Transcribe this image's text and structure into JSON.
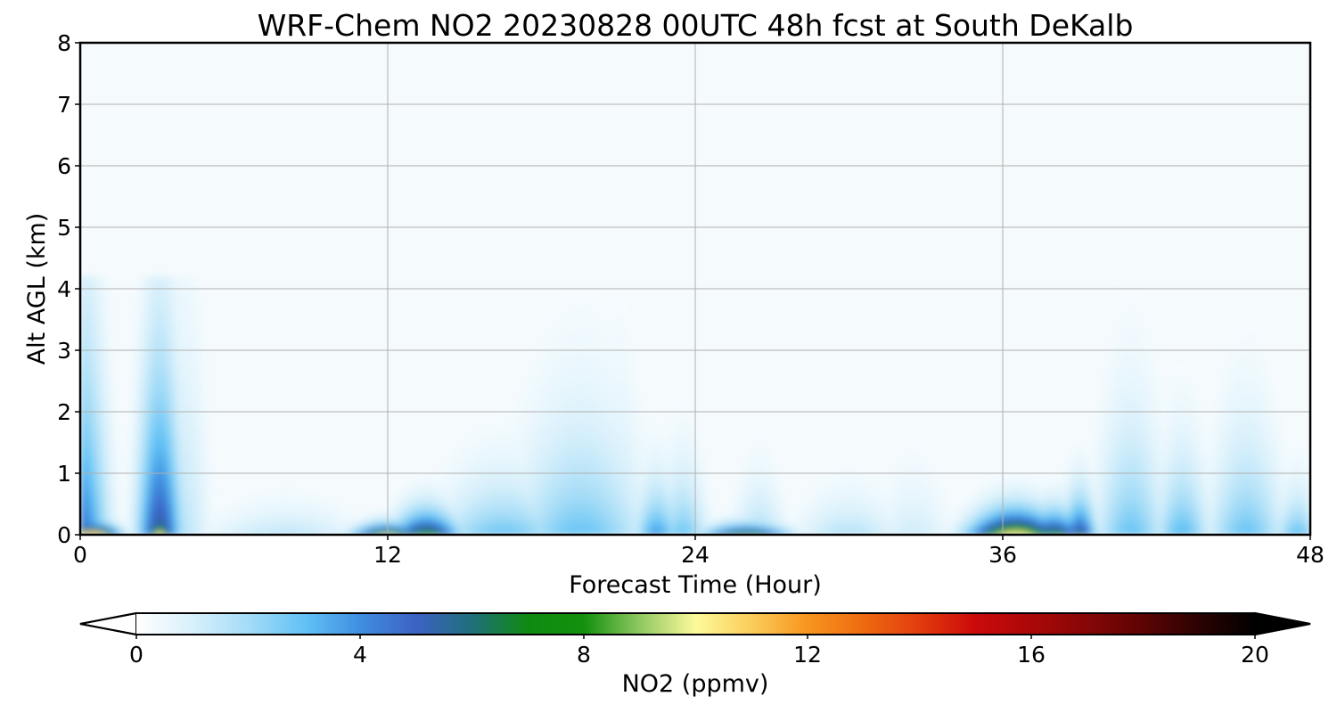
{
  "chart_data": {
    "type": "heatmap",
    "title": "WRF-Chem NO2  20230828 00UTC 48h fcst at South DeKalb",
    "xlabel": "Forecast Time (Hour)",
    "ylabel": "Alt AGL (km)",
    "xlim": [
      0,
      48
    ],
    "ylim": [
      0,
      8
    ],
    "xticks": [
      0,
      12,
      24,
      36,
      48
    ],
    "yticks": [
      0,
      1,
      2,
      3,
      4,
      5,
      6,
      7,
      8
    ],
    "grid": true,
    "background_color": "#f5fafd",
    "colorbar": {
      "label": "NO2  (ppmv)",
      "orientation": "horizontal",
      "placement": "bottom",
      "extend": "both",
      "range": [
        0,
        20
      ],
      "ticks": [
        0,
        4,
        8,
        12,
        16,
        20
      ],
      "stops": [
        {
          "v": 0,
          "c": "#ffffff"
        },
        {
          "v": 1,
          "c": "#d8f0fb"
        },
        {
          "v": 2,
          "c": "#a4dcf7"
        },
        {
          "v": 3,
          "c": "#62c2f5"
        },
        {
          "v": 4,
          "c": "#3f8ee0"
        },
        {
          "v": 5,
          "c": "#3c62c4"
        },
        {
          "v": 6,
          "c": "#1f6f7a"
        },
        {
          "v": 7,
          "c": "#0f8a10"
        },
        {
          "v": 8,
          "c": "#14900e"
        },
        {
          "v": 9,
          "c": "#8fc862"
        },
        {
          "v": 10,
          "c": "#fdfa9a"
        },
        {
          "v": 11,
          "c": "#fbcc5a"
        },
        {
          "v": 12,
          "c": "#f7961e"
        },
        {
          "v": 13,
          "c": "#ee6a10"
        },
        {
          "v": 14,
          "c": "#e23c0e"
        },
        {
          "v": 15,
          "c": "#cb0a0a"
        },
        {
          "v": 16,
          "c": "#ab0808"
        },
        {
          "v": 17,
          "c": "#860606"
        },
        {
          "v": 18,
          "c": "#5c0404"
        },
        {
          "v": 19,
          "c": "#2c0202"
        },
        {
          "v": 20,
          "c": "#000000"
        }
      ]
    },
    "plumes": [
      {
        "t": 0.0,
        "w": 1.0,
        "h": 2.8,
        "peak": 4.8
      },
      {
        "t": 0.5,
        "w": 0.9,
        "h": 0.12,
        "peak": 15.0
      },
      {
        "t": 3.1,
        "w": 0.8,
        "h": 2.3,
        "peak": 6.0
      },
      {
        "t": 3.1,
        "w": 0.4,
        "h": 0.22,
        "peak": 12.0
      },
      {
        "t": 4.0,
        "w": 1.0,
        "h": 3.4,
        "peak": 1.6
      },
      {
        "t": 8.0,
        "w": 3.0,
        "h": 0.45,
        "peak": 1.6
      },
      {
        "t": 12.0,
        "w": 1.2,
        "h": 0.12,
        "peak": 11.0
      },
      {
        "t": 13.5,
        "w": 1.2,
        "h": 0.3,
        "peak": 8.2
      },
      {
        "t": 16.5,
        "w": 2.5,
        "h": 0.8,
        "peak": 3.0
      },
      {
        "t": 19.5,
        "w": 2.5,
        "h": 1.6,
        "peak": 3.0
      },
      {
        "t": 21.0,
        "w": 1.0,
        "h": 2.0,
        "peak": 1.8
      },
      {
        "t": 22.5,
        "w": 0.8,
        "h": 0.7,
        "peak": 4.0
      },
      {
        "t": 23.5,
        "w": 0.9,
        "h": 0.9,
        "peak": 3.0
      },
      {
        "t": 26.0,
        "w": 1.5,
        "h": 0.12,
        "peak": 9.5
      },
      {
        "t": 26.5,
        "w": 1.0,
        "h": 0.8,
        "peak": 2.0
      },
      {
        "t": 30.0,
        "w": 2.0,
        "h": 0.6,
        "peak": 1.8
      },
      {
        "t": 32.5,
        "w": 1.5,
        "h": 1.0,
        "peak": 1.2
      },
      {
        "t": 36.5,
        "w": 1.6,
        "h": 0.28,
        "peak": 11.5
      },
      {
        "t": 38.0,
        "w": 1.0,
        "h": 0.3,
        "peak": 8.0
      },
      {
        "t": 39.0,
        "w": 0.6,
        "h": 0.5,
        "peak": 6.5
      },
      {
        "t": 41.0,
        "w": 1.3,
        "h": 1.6,
        "peak": 3.0
      },
      {
        "t": 43.0,
        "w": 1.0,
        "h": 1.1,
        "peak": 3.3
      },
      {
        "t": 45.5,
        "w": 1.4,
        "h": 1.4,
        "peak": 3.0
      },
      {
        "t": 47.5,
        "w": 0.8,
        "h": 0.6,
        "peak": 3.2
      }
    ]
  }
}
